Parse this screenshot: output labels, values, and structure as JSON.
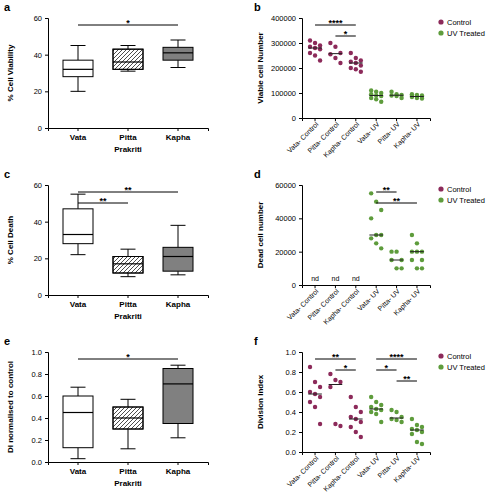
{
  "chart_data": [
    {
      "type": "box",
      "title": "a",
      "y_label": "% Cell Viability",
      "x_label": "Prakriti",
      "categories": [
        "Vata",
        "Pitta",
        "Kapha"
      ],
      "boxes": [
        {
          "min": 20,
          "q1": 28,
          "median": 32,
          "q3": 37,
          "max": 45
        },
        {
          "min": 31,
          "q1": 32,
          "median": 36,
          "q3": 43,
          "max": 45
        },
        {
          "min": 33,
          "q1": 37,
          "median": 41,
          "q3": 44,
          "max": 48
        }
      ],
      "colors": [
        "#ffffff",
        "#ffffff",
        "#808080"
      ],
      "ylim": [
        0,
        60
      ],
      "yticks": [
        0,
        20,
        40,
        60
      ],
      "annotations": [
        {
          "from": "Vata",
          "to": "Kapha",
          "text": "*"
        }
      ]
    },
    {
      "type": "strip",
      "title": "b",
      "y_label": "Viable cell Number",
      "categories": [
        "Vata- Control",
        "Pitta- Control",
        "Kapha- Control",
        "Vata- UV",
        "Pitta- UV",
        "Kapha- UV"
      ],
      "series": [
        {
          "name": "Control",
          "color": "#8c2a5a",
          "values": [
            [
              310000,
              300000,
              290000,
              285000,
              280000,
              275000,
              260000,
              250000,
              230000
            ],
            [
              300000,
              285000,
              260000,
              255000,
              240000,
              220000
            ],
            [
              260000,
              240000,
              230000,
              225000,
              220000,
              210000,
              200000,
              195000,
              185000
            ],
            null,
            null,
            null
          ]
        },
        {
          "name": "UV Treated",
          "color": "#5e9c3c",
          "values": [
            null,
            null,
            null,
            [
              110000,
              105000,
              100000,
              95000,
              90000,
              88000,
              80000,
              75000,
              65000
            ],
            [
              105000,
              95000,
              92000,
              90000,
              88000,
              80000
            ],
            [
              95000,
              92000,
              90000,
              88000,
              86000,
              85000,
              84000,
              80000,
              78000
            ]
          ]
        }
      ],
      "ylim": [
        0,
        400000
      ],
      "yticks": [
        0,
        100000,
        200000,
        300000,
        400000
      ],
      "legend": "right",
      "annotations": [
        {
          "from": "Vata- Control",
          "to": "Kapha- Control",
          "text": "****"
        },
        {
          "from": "Pitta- Control",
          "to": "Kapha- Control",
          "text": "*"
        }
      ]
    },
    {
      "type": "box",
      "title": "c",
      "y_label": "% Cell Death",
      "x_label": "Prakriti",
      "categories": [
        "Vata",
        "Pitta",
        "Kapha"
      ],
      "boxes": [
        {
          "min": 22,
          "q1": 28,
          "median": 33,
          "q3": 47,
          "max": 55
        },
        {
          "min": 10,
          "q1": 12,
          "median": 17,
          "q3": 21,
          "max": 25
        },
        {
          "min": 11,
          "q1": 13,
          "median": 21,
          "q3": 26,
          "max": 38
        }
      ],
      "colors": [
        "#ffffff",
        "#ffffff",
        "#808080"
      ],
      "ylim": [
        0,
        60
      ],
      "yticks": [
        0,
        20,
        40,
        60
      ],
      "annotations": [
        {
          "from": "Vata",
          "to": "Kapha",
          "text": "**"
        },
        {
          "from": "Vata",
          "to": "Pitta",
          "text": "**"
        }
      ]
    },
    {
      "type": "strip",
      "title": "d",
      "y_label": "Dead cell number",
      "categories": [
        "Vata- Control",
        "Pitta- Control",
        "Kapha- Control",
        "Vata- UV",
        "Pitta- UV",
        "Kapha- UV"
      ],
      "series": [
        {
          "name": "Control",
          "color": "#8c2a5a",
          "values": [
            null,
            null,
            null,
            null,
            null,
            null
          ]
        },
        {
          "name": "UV Treated",
          "color": "#5e9c3c",
          "values": [
            null,
            null,
            null,
            [
              55000,
              50000,
              45000,
              40000,
              30000,
              30000,
              28000,
              25000,
              22000
            ],
            [
              20000,
              20000,
              15000,
              15000,
              10000,
              10000
            ],
            [
              30000,
              25000,
              20000,
              20000,
              20000,
              15000,
              15000,
              10000,
              10000
            ]
          ]
        }
      ],
      "ylim": [
        0,
        60000
      ],
      "yticks": [
        0,
        20000,
        40000,
        60000
      ],
      "legend": "right",
      "annotations": [
        {
          "at": "Vata- Control",
          "text": "nd"
        },
        {
          "at": "Pitta- Control",
          "text": "nd"
        },
        {
          "at": "Kapha- Control",
          "text": "nd"
        },
        {
          "from": "Vata- UV",
          "to": "Pitta- UV",
          "text": "**"
        },
        {
          "from": "Vata- UV",
          "to": "Kapha- UV",
          "text": "**"
        }
      ]
    },
    {
      "type": "box",
      "title": "e",
      "y_label": "DI normalised to control",
      "x_label": "Prakriti",
      "categories": [
        "Vata",
        "Pitta",
        "Kapha"
      ],
      "boxes": [
        {
          "min": 0.03,
          "q1": 0.13,
          "median": 0.45,
          "q3": 0.6,
          "max": 0.68
        },
        {
          "min": 0.12,
          "q1": 0.3,
          "median": 0.4,
          "q3": 0.5,
          "max": 0.57
        },
        {
          "min": 0.22,
          "q1": 0.35,
          "median": 0.71,
          "q3": 0.85,
          "max": 0.88
        }
      ],
      "colors": [
        "#ffffff",
        "#ffffff",
        "#808080"
      ],
      "ylim": [
        0,
        1
      ],
      "yticks": [
        {
          "value": 0,
          "label": "0.0"
        },
        0.2,
        0.4,
        0.6,
        0.8,
        {
          "value": 1,
          "label": "1.0"
        }
      ],
      "annotations": [
        {
          "from": "Vata",
          "to": "Kapha",
          "text": "*"
        }
      ]
    },
    {
      "type": "strip",
      "title": "f",
      "y_label": "Division Index",
      "categories": [
        "Vata- Control",
        "Pitta- Control",
        "Kapha- Control",
        "Vata- UV",
        "Pitta- UV",
        "Kapha- UV"
      ],
      "series": [
        {
          "name": "Control",
          "color": "#8c2a5a",
          "values": [
            [
              0.85,
              0.7,
              0.65,
              0.6,
              0.58,
              0.55,
              0.5,
              0.45,
              0.28
            ],
            [
              0.78,
              0.72,
              0.7,
              0.65,
              0.28,
              0.26
            ],
            [
              0.55,
              0.45,
              0.4,
              0.35,
              0.33,
              0.3,
              0.25,
              0.2,
              0.15
            ],
            null,
            null,
            null
          ]
        },
        {
          "name": "UV Treated",
          "color": "#5e9c3c",
          "values": [
            null,
            null,
            null,
            [
              0.55,
              0.5,
              0.47,
              0.45,
              0.43,
              0.42,
              0.4,
              0.38,
              0.3
            ],
            [
              0.42,
              0.4,
              0.35,
              0.33,
              0.32,
              0.3
            ],
            [
              0.33,
              0.27,
              0.25,
              0.23,
              0.22,
              0.2,
              0.18,
              0.1,
              0.08
            ]
          ]
        }
      ],
      "ylim": [
        0,
        1
      ],
      "yticks": [
        {
          "value": 0,
          "label": "0.0"
        },
        0.2,
        0.4,
        0.6,
        0.8,
        {
          "value": 1,
          "label": "1.0"
        }
      ],
      "legend": "right",
      "annotations": [
        {
          "from": "Vata- Control",
          "to": "Kapha- Control",
          "text": "**"
        },
        {
          "from": "Pitta- Control",
          "to": "Kapha- Control",
          "text": "*"
        },
        {
          "from": "Vata- UV",
          "to": "Kapha- UV",
          "text": "****"
        },
        {
          "from": "Vata- UV",
          "to": "Pitta- UV",
          "text": "*"
        },
        {
          "from": "Pitta- UV",
          "to": "Kapha- UV",
          "text": "**"
        }
      ]
    }
  ]
}
